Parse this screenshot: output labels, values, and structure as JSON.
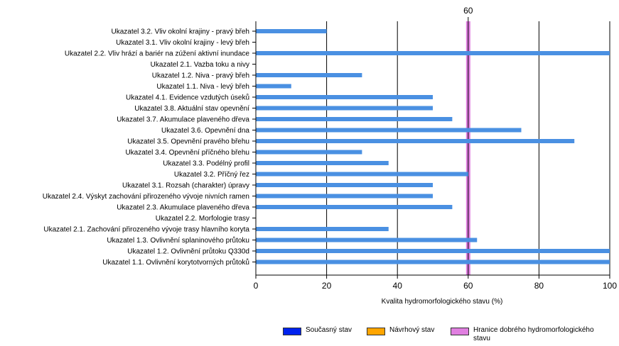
{
  "chart_data": {
    "type": "bar",
    "orientation": "horizontal",
    "categories": [
      "Ukazatel 3.2. Vliv okolní krajiny - pravý břeh",
      "Ukazatel 3.1. Vliv okolní krajiny - levý břeh",
      "Ukazatel 2.2. Vliv hrází a bariér na zúžení aktivní inundace",
      "Ukazatel 2.1. Vazba toku a nivy",
      "Ukazatel 1.2. Niva - pravý břeh",
      "Ukazatel 1.1. Niva - levý břeh",
      "Ukazatel 4.1. Evidence vzdutých úseků",
      "Ukazatel 3.8. Aktuální stav opevnění",
      "Ukazatel 3.7. Akumulace plaveného dřeva",
      "Ukazatel 3.6. Opevnění dna",
      "Ukazatel 3.5. Opevnění pravého břehu",
      "Ukazatel 3.4. Opevnění příčného břehu",
      "Ukazatel 3.3. Podélný profil",
      "Ukazatel 3.2. Příčný řez",
      "Ukazatel 3.1. Rozsah (charakter) úpravy",
      "Ukazatel 2.4. Výskyt zachování přirozeného vývoje nivních ramen",
      "Ukazatel 2.3. Akumulace plaveného dřeva",
      "Ukazatel 2.2. Morfologie trasy",
      "Ukazatel 2.1. Zachování přirozeného vývoje trasy hlavního koryta",
      "Ukazatel 1.3. Ovlivnění splaninového průtoku",
      "Ukazatel 1.2. Ovlivnění průtoku Q330d",
      "Ukazatel 1.1. Ovlivnění korytotvorných průtoků"
    ],
    "series": [
      {
        "name": "Současný stav",
        "color": "#4a90e2",
        "values": [
          20,
          0,
          100,
          0,
          30,
          10,
          50,
          50,
          55.5,
          75,
          90,
          30,
          37.5,
          60,
          50,
          50,
          55.5,
          0,
          37.5,
          62.5,
          100,
          100
        ]
      }
    ],
    "xlabel": "Kvalita hydromorfologického stavu (%)",
    "xlim": [
      0,
      100
    ],
    "xticks": [
      0,
      20,
      40,
      60,
      80,
      100
    ],
    "grid": "vertical",
    "threshold": {
      "value": 60,
      "label": "60",
      "color": "#e07fe0"
    },
    "legend": {
      "placement": "bottom-right",
      "items": [
        {
          "label": "Současný stav",
          "color": "#0022ee"
        },
        {
          "label": "Návrhový stav",
          "color": "#ffa500"
        },
        {
          "label": "Hranice dobrého hydromorfologického stavu",
          "color": "#e07fe0"
        }
      ]
    }
  }
}
